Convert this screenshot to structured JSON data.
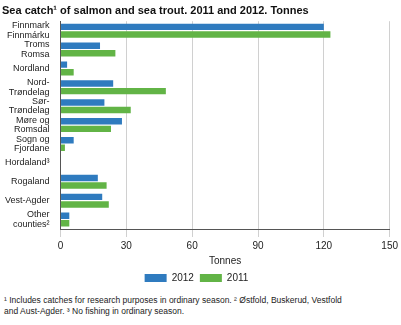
{
  "chart_data": {
    "type": "bar",
    "orientation": "horizontal",
    "title": "Sea catch¹ of salmon and sea trout. 2011 and 2012. Tonnes",
    "x_label": "Tonnes",
    "categories": [
      "Finnmark\nFinnmárku",
      "Troms\nRomsa",
      "Nordland",
      "Nord-\nTrøndelag",
      "Sør-\nTrøndelag",
      "Møre og\nRomsdal",
      "Sogn og\nFjordane",
      "Hordaland³",
      "Rogaland",
      "Vest-Agder",
      "Other\ncounties²"
    ],
    "series": [
      {
        "name": "2012",
        "color": "#2f7bbf",
        "values": [
          120,
          18,
          3,
          24,
          20,
          28,
          6,
          0,
          17,
          19,
          4
        ]
      },
      {
        "name": "2011",
        "color": "#62b446",
        "values": [
          123,
          25,
          6,
          48,
          32,
          23,
          2,
          0,
          21,
          22,
          4
        ]
      }
    ],
    "xlim": [
      0,
      150
    ],
    "xticks": [
      0,
      30,
      60,
      90,
      120,
      150
    ],
    "grid": true,
    "legend": "bottom",
    "annotations": [
      "¹ Includes catches for research purposes in ordinary season. ² Østfold, Buskerud, Vestfold",
      "and Aust-Agder. ³ No fishing in ordinary season."
    ]
  }
}
